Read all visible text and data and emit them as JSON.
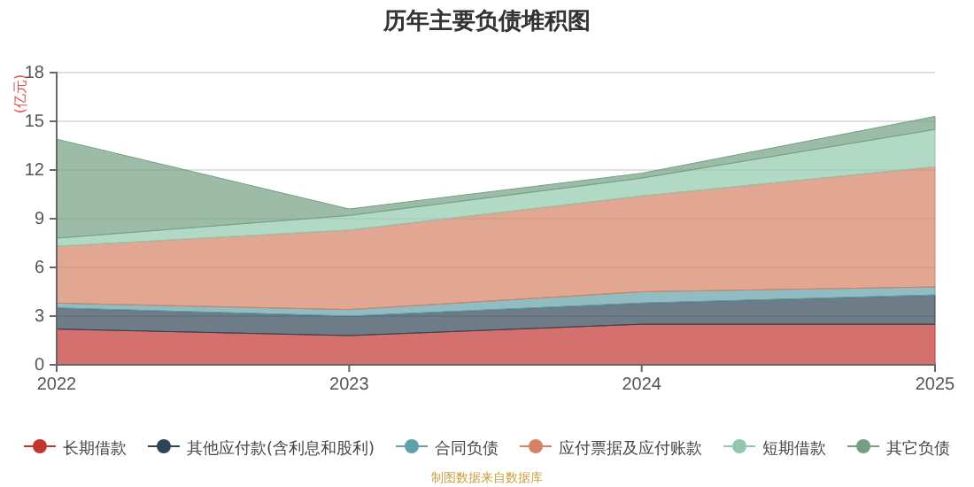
{
  "chart_data": {
    "type": "area",
    "title": "历年主要负债堆积图",
    "ylabel": "(亿元)",
    "stacked": true,
    "x": [
      "2022",
      "2023",
      "2024",
      "2025"
    ],
    "xlim": [
      "2022",
      "2025"
    ],
    "xticks": [
      {
        "value": "2022",
        "label": "2022"
      },
      {
        "value": "2023",
        "label": "2023"
      },
      {
        "value": "2024",
        "label": "2024"
      },
      {
        "value": "2025",
        "label": "2025"
      }
    ],
    "ylim": [
      0,
      18
    ],
    "yticks": [
      0,
      3,
      6,
      9,
      12,
      15,
      18
    ],
    "grid": "y",
    "legend": "bottom",
    "series": [
      {
        "name": "长期借款",
        "color": "#c23531",
        "values": [
          2.2,
          1.8,
          2.5,
          2.5
        ]
      },
      {
        "name": "其他应付款(含利息和股利)",
        "color": "#2f4554",
        "values": [
          1.3,
          1.2,
          1.3,
          1.8
        ]
      },
      {
        "name": "合同负债",
        "color": "#61a0a8",
        "values": [
          0.3,
          0.4,
          0.7,
          0.5
        ]
      },
      {
        "name": "应付票据及应付账款",
        "color": "#d48265",
        "values": [
          3.5,
          4.9,
          5.9,
          7.4
        ]
      },
      {
        "name": "短期借款",
        "color": "#91c7ae",
        "values": [
          0.5,
          0.9,
          1.1,
          2.3
        ]
      },
      {
        "name": "其它负债",
        "color": "#749f83",
        "values": [
          6.1,
          0.4,
          0.3,
          0.8
        ]
      }
    ],
    "annotations": [
      "制图数据来自数据库"
    ]
  }
}
